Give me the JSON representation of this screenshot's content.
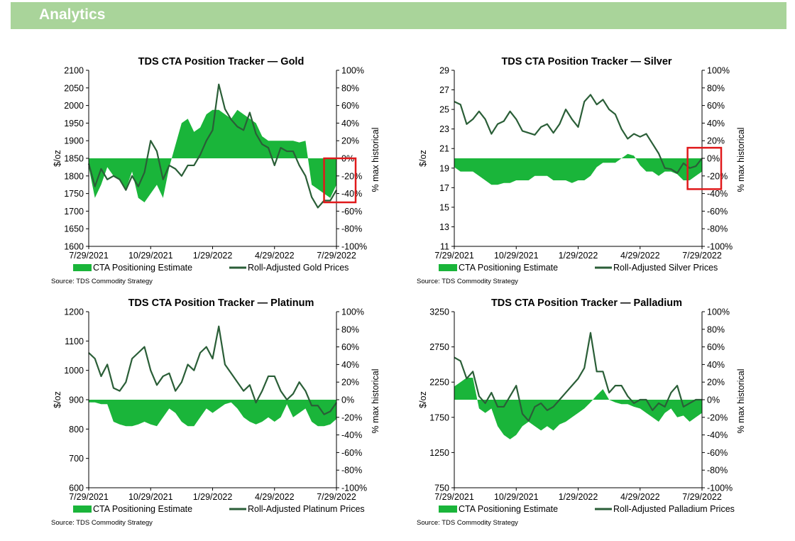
{
  "banner": {
    "title": "Analytics"
  },
  "colors": {
    "banner": "#a9d49a",
    "area": "#1ab53a",
    "line": "#2a5e37",
    "highlight": "#e0191b"
  },
  "chart_data": [
    {
      "type": "area",
      "title": "TDS CTA Position Tracker — Gold",
      "ylabel": "$/oz",
      "y2label": "% max historical",
      "ylim": [
        1600,
        2100
      ],
      "y2lim": [
        -100,
        100
      ],
      "yticks": [
        "2100",
        "2050",
        "2000",
        "1950",
        "1900",
        "1850",
        "1800",
        "1750",
        "1700",
        "1650",
        "1600"
      ],
      "y2ticks": [
        "100%",
        "80%",
        "60%",
        "40%",
        "20%",
        "0%",
        "-20%",
        "-40%",
        "-60%",
        "-80%",
        "-100%"
      ],
      "xticks": [
        "7/29/2021",
        "10/29/2021",
        "1/29/2022",
        "4/29/2022",
        "7/29/2022"
      ],
      "xlim": [
        0,
        12
      ],
      "series": [
        {
          "name": "CTA Positioning Estimate",
          "kind": "area",
          "axis": "right",
          "x": [
            0,
            0.3,
            0.6,
            0.9,
            1.2,
            1.5,
            1.8,
            2.1,
            2.4,
            2.7,
            3.0,
            3.3,
            3.6,
            3.9,
            4.2,
            4.5,
            4.8,
            5.1,
            5.4,
            5.7,
            6.0,
            6.3,
            6.6,
            6.9,
            7.2,
            7.5,
            7.8,
            8.1,
            8.4,
            8.7,
            9.0,
            9.3,
            9.6,
            9.9,
            10.2,
            10.5,
            10.8,
            11.1,
            11.4,
            11.7,
            12.0
          ],
          "values": [
            -10,
            -45,
            -30,
            -10,
            -20,
            -25,
            -35,
            -15,
            -45,
            -50,
            -40,
            -30,
            -45,
            -10,
            15,
            40,
            45,
            30,
            35,
            50,
            55,
            55,
            50,
            45,
            55,
            50,
            45,
            40,
            25,
            20,
            20,
            20,
            20,
            20,
            18,
            20,
            -30,
            -35,
            -40,
            -45,
            -30
          ]
        },
        {
          "name": "Roll-Adjusted Gold Prices",
          "kind": "line",
          "axis": "left",
          "x": [
            0,
            0.3,
            0.6,
            0.9,
            1.2,
            1.5,
            1.8,
            2.1,
            2.4,
            2.7,
            3.0,
            3.3,
            3.6,
            3.9,
            4.2,
            4.5,
            4.8,
            5.1,
            5.4,
            5.7,
            6.0,
            6.3,
            6.6,
            6.9,
            7.2,
            7.5,
            7.8,
            8.1,
            8.4,
            8.7,
            9.0,
            9.3,
            9.6,
            9.9,
            10.2,
            10.5,
            10.8,
            11.1,
            11.4,
            11.7,
            12.0
          ],
          "values": [
            1835,
            1770,
            1820,
            1790,
            1800,
            1790,
            1760,
            1800,
            1770,
            1810,
            1900,
            1870,
            1790,
            1830,
            1820,
            1800,
            1830,
            1830,
            1860,
            1900,
            1930,
            2060,
            1990,
            1960,
            1940,
            1930,
            1980,
            1920,
            1890,
            1880,
            1830,
            1880,
            1870,
            1870,
            1830,
            1800,
            1740,
            1710,
            1730,
            1730,
            1760
          ]
        }
      ],
      "highlight": {
        "x": [
          11.4,
          12.0
        ],
        "y": [
          -50,
          0
        ]
      }
    },
    {
      "type": "area",
      "title": "TDS CTA Position Tracker — Silver",
      "ylabel": "$/oz",
      "y2label": "% max historical",
      "ylim": [
        11,
        29
      ],
      "y2lim": [
        -100,
        100
      ],
      "yticks": [
        "29",
        "27",
        "25",
        "23",
        "21",
        "19",
        "17",
        "15",
        "13",
        "11"
      ],
      "y2ticks": [
        "100%",
        "80%",
        "60%",
        "40%",
        "20%",
        "0%",
        "-20%",
        "-40%",
        "-60%",
        "-80%",
        "-100%"
      ],
      "xticks": [
        "7/29/2021",
        "10/29/2021",
        "1/29/2022",
        "4/29/2022",
        "7/29/2022"
      ],
      "xlim": [
        0,
        12
      ],
      "series": [
        {
          "name": "CTA Positioning Estimate",
          "kind": "area",
          "axis": "right",
          "x": [
            0,
            0.3,
            0.6,
            0.9,
            1.2,
            1.5,
            1.8,
            2.1,
            2.4,
            2.7,
            3.0,
            3.3,
            3.6,
            3.9,
            4.2,
            4.5,
            4.8,
            5.1,
            5.4,
            5.7,
            6.0,
            6.3,
            6.6,
            6.9,
            7.2,
            7.5,
            7.8,
            8.1,
            8.4,
            8.7,
            9.0,
            9.3,
            9.6,
            9.9,
            10.2,
            10.5,
            10.8,
            11.1,
            11.4,
            11.7,
            12.0
          ],
          "values": [
            -10,
            -15,
            -15,
            -15,
            -20,
            -25,
            -30,
            -30,
            -28,
            -28,
            -25,
            -25,
            -25,
            -20,
            -20,
            -20,
            -25,
            -25,
            -25,
            -28,
            -25,
            -25,
            -20,
            -10,
            -5,
            -5,
            -5,
            0,
            5,
            3,
            -8,
            -15,
            -15,
            -20,
            -15,
            -15,
            -18,
            -25,
            -25,
            -20,
            -15
          ]
        },
        {
          "name": "Roll-Adjusted Silver Prices",
          "kind": "line",
          "axis": "left",
          "x": [
            0,
            0.3,
            0.6,
            0.9,
            1.2,
            1.5,
            1.8,
            2.1,
            2.4,
            2.7,
            3.0,
            3.3,
            3.6,
            3.9,
            4.2,
            4.5,
            4.8,
            5.1,
            5.4,
            5.7,
            6.0,
            6.3,
            6.6,
            6.9,
            7.2,
            7.5,
            7.8,
            8.1,
            8.4,
            8.7,
            9.0,
            9.3,
            9.6,
            9.9,
            10.2,
            10.5,
            10.8,
            11.1,
            11.4,
            11.7,
            12.0
          ],
          "values": [
            25.8,
            25.5,
            23.5,
            24,
            24.8,
            24,
            22.5,
            23.5,
            23.8,
            24.8,
            24,
            22.8,
            22.6,
            22.4,
            23.2,
            23.5,
            22.6,
            23.5,
            25,
            24,
            23.2,
            25.8,
            26.5,
            25.5,
            26,
            25,
            24.5,
            23,
            22,
            22.5,
            22.2,
            22.5,
            21.5,
            20.5,
            19,
            18.9,
            18.5,
            19.5,
            19,
            19.2,
            20
          ]
        }
      ],
      "highlight": {
        "x": [
          11.3,
          12.0
        ],
        "y": [
          -35,
          12
        ]
      }
    },
    {
      "type": "area",
      "title": "TDS CTA Position Tracker — Platinum",
      "ylabel": "$/oz",
      "y2label": "% max historical",
      "ylim": [
        600,
        1200
      ],
      "y2lim": [
        -100,
        100
      ],
      "yticks": [
        "1200",
        "1100",
        "1000",
        "900",
        "800",
        "700",
        "600"
      ],
      "y2ticks": [
        "100%",
        "80%",
        "60%",
        "40%",
        "20%",
        "0%",
        "-20%",
        "-40%",
        "-60%",
        "-80%",
        "-100%"
      ],
      "xticks": [
        "7/29/2021",
        "10/29/2021",
        "1/29/2022",
        "4/29/2022",
        "7/29/2022"
      ],
      "xlim": [
        0,
        12
      ],
      "series": [
        {
          "name": "CTA Positioning Estimate",
          "kind": "area",
          "axis": "right",
          "x": [
            0,
            0.3,
            0.6,
            0.9,
            1.2,
            1.5,
            1.8,
            2.1,
            2.4,
            2.7,
            3.0,
            3.3,
            3.6,
            3.9,
            4.2,
            4.5,
            4.8,
            5.1,
            5.4,
            5.7,
            6.0,
            6.3,
            6.6,
            6.9,
            7.2,
            7.5,
            7.8,
            8.1,
            8.4,
            8.7,
            9.0,
            9.3,
            9.6,
            9.9,
            10.2,
            10.5,
            10.8,
            11.1,
            11.4,
            11.7,
            12.0
          ],
          "values": [
            -3,
            -3,
            -5,
            -5,
            -25,
            -28,
            -30,
            -30,
            -28,
            -25,
            -28,
            -30,
            -20,
            -10,
            -15,
            -25,
            -30,
            -30,
            -20,
            -10,
            -15,
            -10,
            -5,
            -3,
            -10,
            -20,
            -25,
            -28,
            -25,
            -20,
            -25,
            -20,
            -5,
            -20,
            -15,
            -10,
            -25,
            -30,
            -30,
            -28,
            -22
          ]
        },
        {
          "name": "Roll-Adjusted Platinum Prices",
          "kind": "line",
          "axis": "left",
          "x": [
            0,
            0.3,
            0.6,
            0.9,
            1.2,
            1.5,
            1.8,
            2.1,
            2.4,
            2.7,
            3.0,
            3.3,
            3.6,
            3.9,
            4.2,
            4.5,
            4.8,
            5.1,
            5.4,
            5.7,
            6.0,
            6.3,
            6.6,
            6.9,
            7.2,
            7.5,
            7.8,
            8.1,
            8.4,
            8.7,
            9.0,
            9.3,
            9.6,
            9.9,
            10.2,
            10.5,
            10.8,
            11.1,
            11.4,
            11.7,
            12.0
          ],
          "values": [
            1060,
            1040,
            980,
            1020,
            940,
            930,
            960,
            1040,
            1060,
            1080,
            1000,
            950,
            980,
            990,
            930,
            960,
            1020,
            1000,
            1060,
            1080,
            1040,
            1150,
            1020,
            990,
            960,
            930,
            950,
            890,
            930,
            980,
            980,
            930,
            900,
            920,
            960,
            930,
            880,
            880,
            850,
            860,
            890
          ]
        }
      ]
    },
    {
      "type": "area",
      "title": "TDS CTA Position Tracker — Palladium",
      "ylabel": "$/oz",
      "y2label": "% max historical",
      "ylim": [
        750,
        3250
      ],
      "y2lim": [
        -100,
        100
      ],
      "yticks": [
        "3250",
        "2750",
        "2250",
        "1750",
        "1250",
        "750"
      ],
      "y2ticks": [
        "100%",
        "80%",
        "60%",
        "40%",
        "20%",
        "0%",
        "-20%",
        "-40%",
        "-60%",
        "-80%",
        "-100%"
      ],
      "xticks": [
        "7/29/2021",
        "10/29/2021",
        "1/29/2022",
        "4/29/2022",
        "7/29/2022"
      ],
      "xlim": [
        0,
        12
      ],
      "series": [
        {
          "name": "CTA Positioning Estimate",
          "kind": "area",
          "axis": "right",
          "x": [
            0,
            0.3,
            0.6,
            0.9,
            1.2,
            1.5,
            1.8,
            2.1,
            2.4,
            2.7,
            3.0,
            3.3,
            3.6,
            3.9,
            4.2,
            4.5,
            4.8,
            5.1,
            5.4,
            5.7,
            6.0,
            6.3,
            6.6,
            6.9,
            7.2,
            7.5,
            7.8,
            8.1,
            8.4,
            8.7,
            9.0,
            9.3,
            9.6,
            9.9,
            10.2,
            10.5,
            10.8,
            11.1,
            11.4,
            11.7,
            12.0
          ],
          "values": [
            15,
            20,
            25,
            25,
            -10,
            -15,
            -10,
            -30,
            -40,
            -45,
            -40,
            -30,
            -25,
            -30,
            -35,
            -30,
            -35,
            -28,
            -25,
            -20,
            -15,
            -10,
            -3,
            5,
            12,
            0,
            -3,
            -5,
            -5,
            -8,
            -10,
            -15,
            -20,
            -25,
            -15,
            -10,
            -20,
            -18,
            -25,
            -20,
            -15
          ]
        },
        {
          "name": "Roll-Adjusted Palladium Prices",
          "kind": "line",
          "axis": "left",
          "x": [
            0,
            0.3,
            0.6,
            0.9,
            1.2,
            1.5,
            1.8,
            2.1,
            2.4,
            2.7,
            3.0,
            3.3,
            3.6,
            3.9,
            4.2,
            4.5,
            4.8,
            5.1,
            5.4,
            5.7,
            6.0,
            6.3,
            6.6,
            6.9,
            7.2,
            7.5,
            7.8,
            8.1,
            8.4,
            8.7,
            9.0,
            9.3,
            9.6,
            9.9,
            10.2,
            10.5,
            10.8,
            11.1,
            11.4,
            11.7,
            12.0
          ],
          "values": [
            2600,
            2550,
            2300,
            2400,
            2050,
            1950,
            2100,
            1900,
            1900,
            2050,
            2200,
            1800,
            1700,
            1900,
            1950,
            1850,
            1900,
            2000,
            2100,
            2200,
            2300,
            2450,
            2950,
            2400,
            2400,
            2100,
            2200,
            2200,
            2050,
            1950,
            2000,
            2000,
            1850,
            1950,
            1900,
            2100,
            2200,
            1900,
            1950,
            2000,
            2000
          ]
        }
      ]
    }
  ],
  "source": "Source: TDS Commodity Strategy"
}
